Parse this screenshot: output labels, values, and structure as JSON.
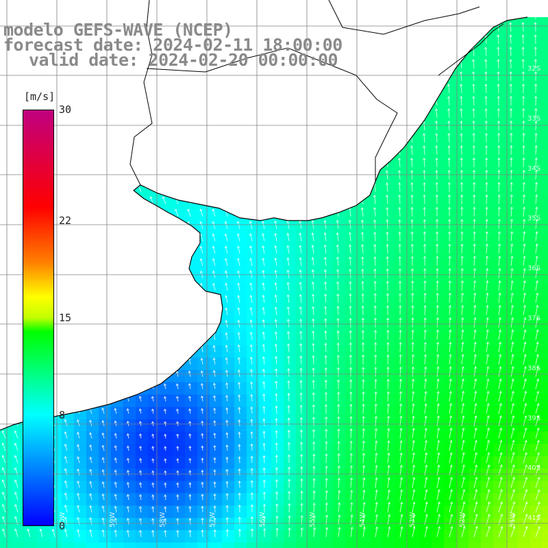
{
  "title": {
    "line1": "modelo GEFS-WAVE (NCEP)",
    "line2": "forecast date: 2024-02-11 18:00:00",
    "line3": "valid date: 2024-02-20 00:00:00"
  },
  "colorbar": {
    "unit": "[m/s]",
    "min": 0,
    "max": 30,
    "labels": [
      {
        "text": "30",
        "value": 30
      },
      {
        "text": "22",
        "value": 22
      },
      {
        "text": "15",
        "value": 15
      },
      {
        "text": "8",
        "value": 8
      },
      {
        "text": "0",
        "value": 0
      }
    ],
    "stops": [
      {
        "value": 0,
        "color": "#0000ff"
      },
      {
        "value": 4,
        "color": "#0080ff"
      },
      {
        "value": 8,
        "color": "#00ffff"
      },
      {
        "value": 11,
        "color": "#00ff80"
      },
      {
        "value": 14,
        "color": "#00ff00"
      },
      {
        "value": 15,
        "color": "#c0ff00"
      },
      {
        "value": 16.5,
        "color": "#ffff00"
      },
      {
        "value": 19,
        "color": "#ff8000"
      },
      {
        "value": 23,
        "color": "#ff0000"
      },
      {
        "value": 30,
        "color": "#c00080"
      }
    ]
  },
  "grid": {
    "lat_labels": [
      "32S",
      "33S",
      "34S",
      "35S",
      "36S",
      "37S",
      "38S",
      "39S",
      "40S",
      "41S"
    ],
    "lon_labels": [
      "60W",
      "59W",
      "58W",
      "57W",
      "56W",
      "55W",
      "54W",
      "53W",
      "52W",
      "51W"
    ]
  },
  "colors": {
    "land": "#ffffff",
    "coastline": "#000000",
    "gridline": "#808080",
    "arrow": "#ffffff"
  }
}
